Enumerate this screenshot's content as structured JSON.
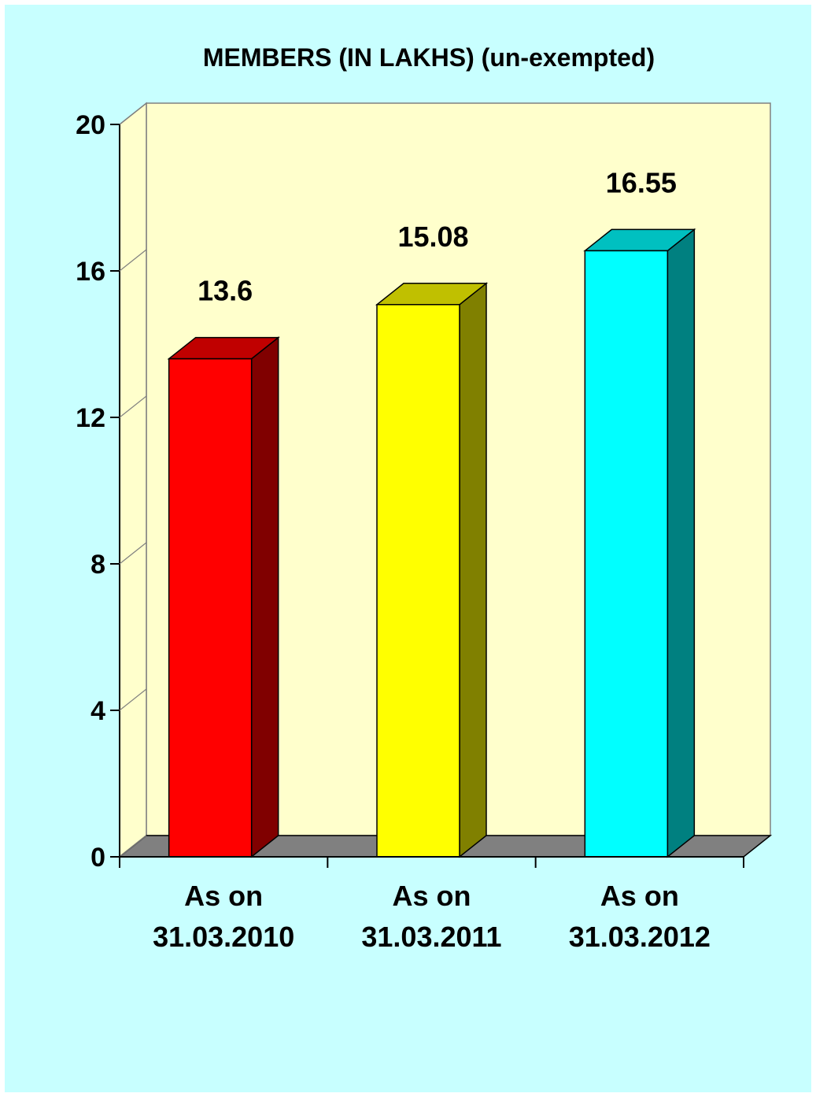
{
  "chart_data": {
    "type": "bar",
    "title": "MEMBERS (IN LAKHS) (un-exempted)",
    "xlabel": "",
    "ylabel": "",
    "categories": [
      [
        "As on",
        "31.03.2010"
      ],
      [
        "As on",
        "31.03.2011"
      ],
      [
        "As on",
        "31.03.2012"
      ]
    ],
    "values": [
      13.6,
      15.08,
      16.55
    ],
    "value_labels": [
      "13.6",
      "15.08",
      "16.55"
    ],
    "ylim": [
      0,
      20
    ],
    "yticks": [
      0,
      4,
      8,
      12,
      16,
      20
    ],
    "ytick_labels": [
      "0",
      "4",
      "8",
      "12",
      "16",
      "20"
    ],
    "grid": false,
    "legend": "none",
    "style": "3d-column",
    "colors": {
      "page_background": "#c8ffff",
      "plot_wall": "#ffffcc",
      "floor": "#808080",
      "outline": "#000000",
      "bars": [
        {
          "front": "#ff0000",
          "side": "#800000",
          "top": "#c00000"
        },
        {
          "front": "#ffff00",
          "side": "#808000",
          "top": "#c0c000"
        },
        {
          "front": "#00ffff",
          "side": "#008080",
          "top": "#00c0c0"
        }
      ]
    }
  }
}
